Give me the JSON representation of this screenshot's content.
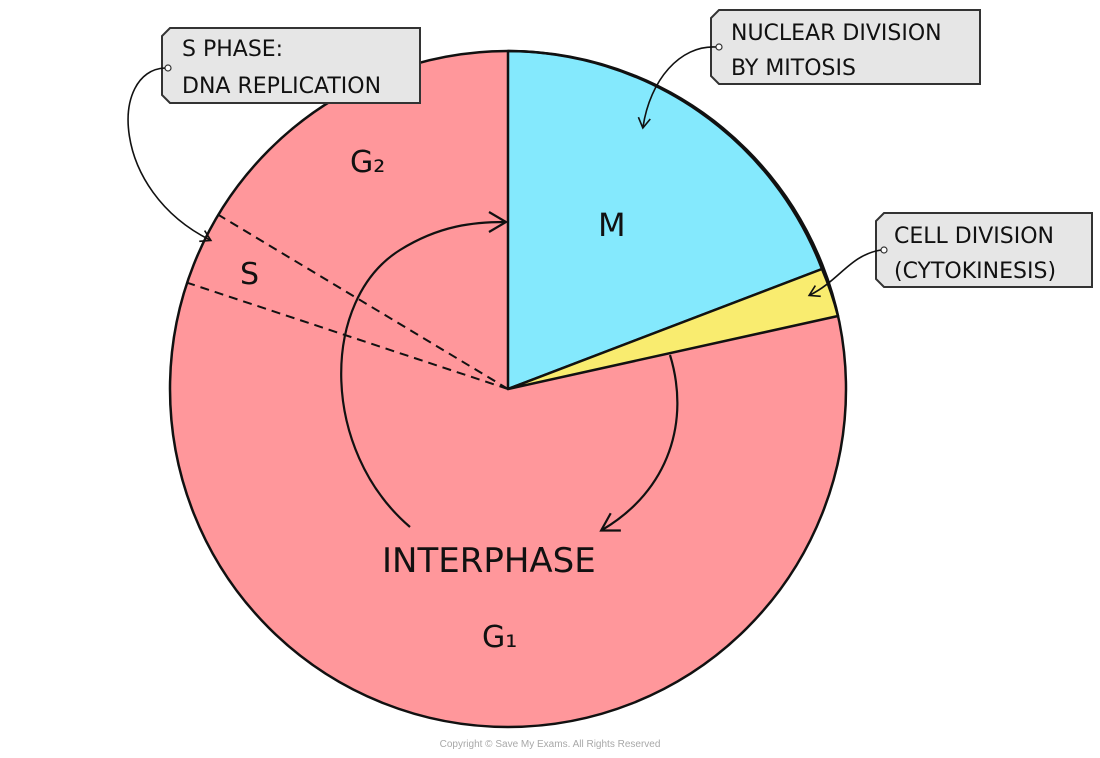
{
  "colors": {
    "interphase": "#ff979b",
    "mitosis": "#84e9fd",
    "cytokinesis": "#f9ec6f",
    "callout": "#e6e6e6"
  },
  "phases": {
    "g2": "G₂",
    "s": "S",
    "m": "M",
    "g1": "G₁",
    "interphase": "INTERPHASE"
  },
  "callouts": {
    "s_phase": [
      "S PHASE:",
      "DNA REPLICATION"
    ],
    "mitosis": [
      "NUCLEAR DIVISION",
      "BY MITOSIS"
    ],
    "cytokinesis": [
      "CELL DIVISION",
      "(CYTOKINESIS)"
    ]
  },
  "copyright": "Copyright © Save My Exams. All Rights Reserved"
}
